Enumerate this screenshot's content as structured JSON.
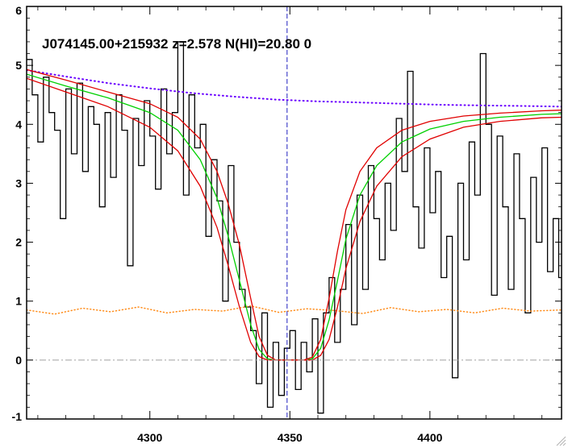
{
  "chart_data": {
    "type": "line",
    "title": "J074145.00+215932 z=2.578 N(HI)=20.80 0",
    "xlim": [
      4256,
      4447
    ],
    "ylim": [
      -1,
      6
    ],
    "x_ticks": [
      4300,
      4350,
      4400
    ],
    "y_ticks": [
      -1,
      0,
      1,
      2,
      3,
      4,
      5,
      6
    ],
    "grid": false,
    "legend": "none",
    "reference_lines": {
      "vertical_x": 4349,
      "horizontal_y": 0
    },
    "colors": {
      "flux": "#000000",
      "continuum": "#6a00ff",
      "error": "#ff8c1a",
      "model": "#00d000",
      "model_bounds": "#e00000",
      "marker_line": "#2020c0",
      "zero_line": "#a0a0a0"
    },
    "series": [
      {
        "type": "step",
        "x": [
          4256,
          4258,
          4260,
          4262,
          4264,
          4266,
          4268,
          4270,
          4272,
          4274,
          4276,
          4278,
          4280,
          4282,
          4284,
          4286,
          4288,
          4290,
          4292,
          4294,
          4296,
          4298,
          4300,
          4302,
          4304,
          4306,
          4308,
          4310,
          4312,
          4314,
          4316,
          4318,
          4320,
          4322,
          4324,
          4326,
          4328,
          4330,
          4332,
          4334,
          4336,
          4338,
          4340,
          4342,
          4344,
          4346,
          4348,
          4350,
          4352,
          4354,
          4356,
          4358,
          4360,
          4362,
          4364,
          4366,
          4368,
          4370,
          4372,
          4374,
          4376,
          4378,
          4380,
          4382,
          4384,
          4386,
          4388,
          4390,
          4392,
          4394,
          4396,
          4398,
          4400,
          4402,
          4404,
          4406,
          4408,
          4410,
          4412,
          4414,
          4416,
          4418,
          4420,
          4422,
          4424,
          4426,
          4428,
          4430,
          4432,
          4434,
          4436,
          4438,
          4440,
          4442,
          4444,
          4446
        ],
        "values": [
          5.1,
          4.5,
          3.7,
          4.8,
          4.2,
          3.9,
          2.4,
          4.6,
          3.5,
          4.7,
          3.2,
          4.3,
          4.0,
          2.6,
          4.2,
          3.1,
          4.5,
          3.9,
          1.6,
          4.1,
          3.3,
          4.4,
          3.8,
          2.9,
          4.6,
          3.5,
          4.2,
          5.4,
          2.8,
          4.5,
          3.6,
          4.0,
          2.1,
          3.4,
          2.7,
          1.0,
          3.3,
          2.0,
          1.2,
          0.9,
          0.5,
          -0.4,
          0.8,
          -0.8,
          0.3,
          -0.6,
          0.2,
          0.5,
          -0.5,
          0.3,
          -0.2,
          0.7,
          -0.9,
          0.8,
          1.4,
          0.3,
          1.2,
          2.3,
          0.6,
          2.8,
          1.2,
          3.3,
          2.4,
          1.7,
          3.0,
          2.2,
          4.1,
          3.2,
          4.9,
          2.6,
          1.9,
          3.6,
          2.5,
          3.2,
          1.4,
          2.1,
          -0.3,
          3.0,
          1.7,
          3.7,
          2.8,
          5.2,
          4.0,
          1.1,
          3.8,
          2.6,
          1.2,
          3.5,
          2.4,
          0.8,
          3.1,
          2.0,
          3.6,
          1.5,
          2.4,
          1.4
        ]
      },
      {
        "type": "dotted",
        "x": [
          4256,
          4270,
          4285,
          4300,
          4315,
          4330,
          4345,
          4360,
          4375,
          4390,
          4405,
          4420,
          4435,
          4447
        ],
        "values": [
          4.92,
          4.81,
          4.7,
          4.61,
          4.53,
          4.47,
          4.42,
          4.39,
          4.37,
          4.35,
          4.33,
          4.32,
          4.31,
          4.3
        ]
      },
      {
        "type": "dotted",
        "x": [
          4256,
          4266,
          4276,
          4286,
          4296,
          4306,
          4316,
          4326,
          4336,
          4346,
          4356,
          4366,
          4376,
          4386,
          4396,
          4406,
          4416,
          4426,
          4436,
          4447
        ],
        "values": [
          0.85,
          0.78,
          0.88,
          0.82,
          0.9,
          0.8,
          0.86,
          0.83,
          0.92,
          0.81,
          0.87,
          0.84,
          0.79,
          0.89,
          0.82,
          0.86,
          0.8,
          0.88,
          0.83,
          0.85
        ]
      },
      {
        "x": [
          4256,
          4270,
          4285,
          4300,
          4310,
          4318,
          4324,
          4328,
          4332,
          4336,
          4339,
          4342,
          4345,
          4350,
          4355,
          4358,
          4361,
          4364,
          4367,
          4370,
          4375,
          4381,
          4390,
          4400,
          4412,
          4425,
          4440,
          4447
        ],
        "values": [
          4.85,
          4.65,
          4.45,
          4.2,
          3.9,
          3.4,
          2.75,
          2.1,
          1.35,
          0.6,
          0.18,
          0.02,
          0.0,
          0.0,
          0.0,
          0.02,
          0.2,
          0.68,
          1.35,
          2.05,
          2.8,
          3.3,
          3.7,
          3.92,
          4.05,
          4.12,
          4.17,
          4.18
        ]
      },
      {
        "x": [
          4256,
          4270,
          4285,
          4300,
          4310,
          4318,
          4324,
          4328,
          4332,
          4336,
          4339,
          4342,
          4345,
          4350,
          4355,
          4358,
          4361,
          4364,
          4367,
          4370,
          4375,
          4381,
          4390,
          4400,
          4412,
          4425,
          4440,
          4447
        ],
        "values": [
          4.93,
          4.75,
          4.55,
          4.35,
          4.12,
          3.75,
          3.2,
          2.65,
          1.95,
          1.05,
          0.4,
          0.08,
          0.0,
          0.0,
          0.0,
          0.05,
          0.35,
          1.05,
          1.85,
          2.55,
          3.2,
          3.6,
          3.9,
          4.05,
          4.14,
          4.19,
          4.23,
          4.24
        ]
      },
      {
        "x": [
          4256,
          4270,
          4285,
          4300,
          4310,
          4318,
          4324,
          4328,
          4332,
          4336,
          4339,
          4342,
          4345,
          4350,
          4355,
          4358,
          4361,
          4364,
          4367,
          4370,
          4375,
          4381,
          4390,
          4400,
          4412,
          4425,
          4440,
          4447
        ],
        "values": [
          4.78,
          4.55,
          4.3,
          3.95,
          3.55,
          2.95,
          2.25,
          1.6,
          0.9,
          0.3,
          0.06,
          0.0,
          0.0,
          0.0,
          0.0,
          0.0,
          0.08,
          0.35,
          0.9,
          1.55,
          2.35,
          2.95,
          3.45,
          3.75,
          3.95,
          4.05,
          4.11,
          4.12
        ]
      }
    ]
  }
}
